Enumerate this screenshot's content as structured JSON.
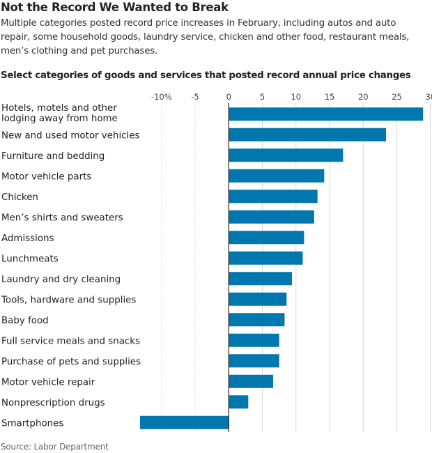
{
  "title": "Not the Record We Wanted to Break",
  "subtitle": "Multiple categories posted record price increases in February, including autos and auto repair, some household goods, laundry service, chicken and other food, restaurant meals, men’s clothing and pet purchases.",
  "source": "Source: Labor Department",
  "chart_data": {
    "type": "bar",
    "orientation": "horizontal",
    "title": "Select categories of goods and services that posted record annual price changes",
    "categories": [
      [
        "Hotels, motels and other",
        "lodging away from home"
      ],
      [
        "New and used motor vehicles"
      ],
      [
        "Furniture and bedding"
      ],
      [
        "Motor vehicle parts"
      ],
      [
        "Chicken"
      ],
      [
        "Men’s shirts and sweaters"
      ],
      [
        "Admissions"
      ],
      [
        "Lunchmeats"
      ],
      [
        "Laundry and dry cleaning"
      ],
      [
        "Tools, hardware and supplies"
      ],
      [
        "Baby food"
      ],
      [
        "Full service meals and snacks"
      ],
      [
        "Purchase of pets and supplies"
      ],
      [
        "Motor vehicle repair"
      ],
      [
        "Nonprescription drugs"
      ],
      [
        "Smartphones"
      ]
    ],
    "values": [
      28.9,
      23.4,
      17.0,
      14.2,
      13.2,
      12.7,
      11.2,
      11.0,
      9.4,
      8.6,
      8.3,
      7.5,
      7.5,
      6.6,
      2.9,
      -13.2
    ],
    "xlim": [
      -13.5,
      30
    ],
    "xticks": [
      -10,
      -5,
      0,
      5,
      10,
      15,
      20,
      25,
      30
    ],
    "xtick_labels": [
      "-10%",
      "-5",
      "0",
      "5",
      "10",
      "15",
      "20",
      "25",
      "30"
    ],
    "grid": true,
    "bar_color": "#0077ae"
  }
}
